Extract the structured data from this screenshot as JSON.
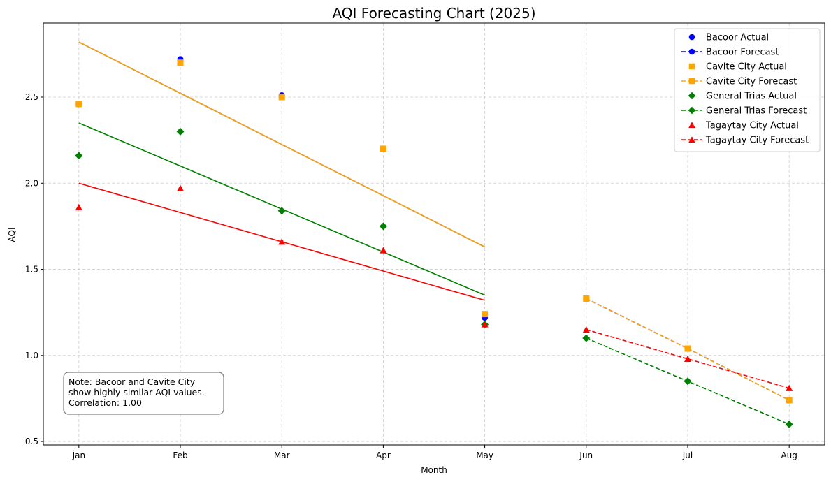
{
  "chart_data": {
    "type": "line",
    "title": "AQI Forecasting Chart (2025)",
    "xlabel": "Month",
    "ylabel": "AQI",
    "categories": [
      "Jan",
      "Feb",
      "Mar",
      "Apr",
      "May",
      "Jun",
      "Jul",
      "Aug"
    ],
    "xlim": [
      -0.35,
      7.35
    ],
    "ylim": [
      0.48,
      2.93
    ],
    "yticks": [
      0.5,
      1.0,
      1.5,
      2.0,
      2.5
    ],
    "ytick_labels": [
      "0.5",
      "1.0",
      "1.5",
      "2.0",
      "2.5"
    ],
    "grid": true,
    "legend_position": "top-right",
    "series": [
      {
        "name": "Bacoor Actual",
        "kind": "actual",
        "marker": "circle",
        "color": "#0000ff",
        "x": [
          0,
          1,
          2,
          3,
          4
        ],
        "values": [
          2.46,
          2.72,
          2.51,
          2.2,
          1.22
        ]
      },
      {
        "name": "Bacoor Forecast",
        "kind": "forecast",
        "marker": "circle",
        "color": "#0000ff",
        "x": [
          5,
          6,
          7
        ],
        "values": [
          1.33,
          1.04,
          0.74
        ]
      },
      {
        "name": "Cavite City Actual",
        "kind": "actual",
        "marker": "square",
        "color": "#ffa500",
        "x": [
          0,
          1,
          2,
          3,
          4
        ],
        "values": [
          2.46,
          2.7,
          2.5,
          2.2,
          1.24
        ]
      },
      {
        "name": "Cavite City Forecast",
        "kind": "forecast",
        "marker": "square",
        "color": "#ffa500",
        "x": [
          5,
          6,
          7
        ],
        "values": [
          1.33,
          1.04,
          0.74
        ]
      },
      {
        "name": "General Trias Actual",
        "kind": "actual",
        "marker": "diamond",
        "color": "#008000",
        "x": [
          0,
          1,
          2,
          3,
          4
        ],
        "values": [
          2.16,
          2.3,
          1.84,
          1.75,
          1.18
        ]
      },
      {
        "name": "General Trias Forecast",
        "kind": "forecast",
        "marker": "diamond",
        "color": "#008000",
        "x": [
          5,
          6,
          7
        ],
        "values": [
          1.1,
          0.85,
          0.6
        ]
      },
      {
        "name": "Tagaytay City Actual",
        "kind": "actual",
        "marker": "triangle",
        "color": "#ff0000",
        "x": [
          0,
          1,
          2,
          3,
          4
        ],
        "values": [
          1.86,
          1.97,
          1.66,
          1.61,
          1.18
        ]
      },
      {
        "name": "Tagaytay City Forecast",
        "kind": "forecast",
        "marker": "triangle",
        "color": "#ff0000",
        "x": [
          5,
          6,
          7
        ],
        "values": [
          1.15,
          0.98,
          0.81
        ]
      }
    ],
    "trend_lines": [
      {
        "of": "Bacoor Actual",
        "color": "#0000ff",
        "x": [
          0,
          4
        ],
        "values": [
          2.82,
          1.63
        ]
      },
      {
        "of": "Cavite City Actual",
        "color": "#ffa500",
        "x": [
          0,
          4
        ],
        "values": [
          2.82,
          1.63
        ]
      },
      {
        "of": "General Trias Actual",
        "color": "#008000",
        "x": [
          0,
          4
        ],
        "values": [
          2.35,
          1.35
        ]
      },
      {
        "of": "Tagaytay City Actual",
        "color": "#ff0000",
        "x": [
          0,
          4
        ],
        "values": [
          2.0,
          1.32
        ]
      }
    ],
    "annotation": {
      "lines": [
        "Note: Bacoor and Cavite City",
        "show highly similar AQI values.",
        "Correlation: 1.00"
      ]
    }
  }
}
